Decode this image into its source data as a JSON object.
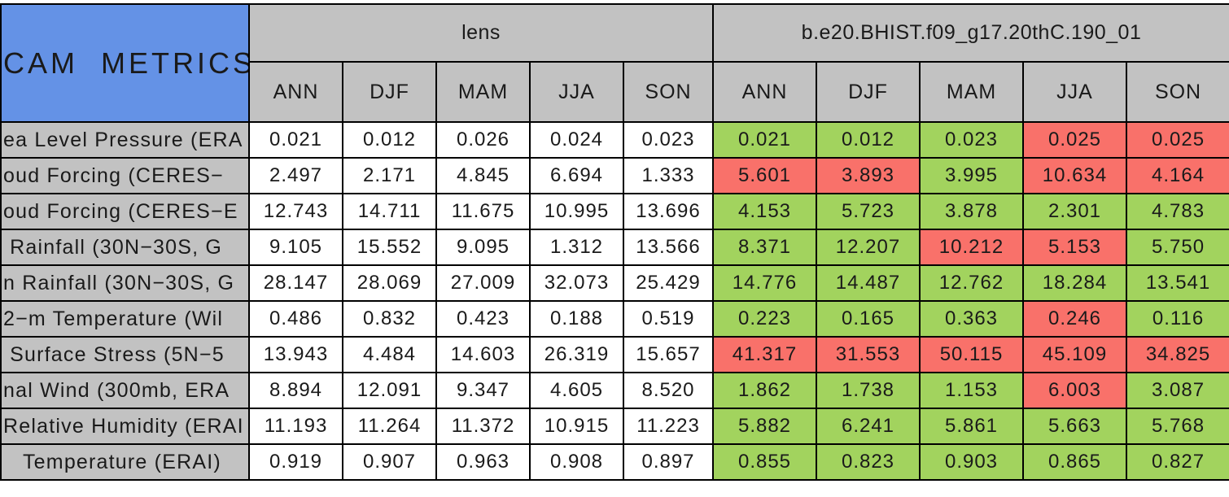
{
  "chart_data": {
    "type": "table",
    "title": "CAM METRICS",
    "column_groups": [
      {
        "label": "lens",
        "columns": [
          "ANN",
          "DJF",
          "MAM",
          "JJA",
          "SON"
        ]
      },
      {
        "label": "b.e20.BHIST.f09_g17.20thC.190_01",
        "columns": [
          "ANN",
          "DJF",
          "MAM",
          "JJA",
          "SON"
        ]
      }
    ],
    "colors": {
      "title_cell_blue": "#6492e6",
      "header_gray": "#c2c2c2",
      "pass_green": "#a2d35e",
      "fail_red": "#f9716a",
      "lens_cell_white": "#ffffff",
      "grid_black": "#000000",
      "text_black": "#1a1a1a"
    },
    "rows": [
      {
        "label": "ea Level Pressure (ERA",
        "lens": [
          "0.021",
          "0.012",
          "0.026",
          "0.024",
          "0.023"
        ],
        "case": [
          "0.021",
          "0.012",
          "0.023",
          "0.025",
          "0.025"
        ],
        "case_flags": [
          "pass",
          "pass",
          "pass",
          "fail",
          "fail"
        ]
      },
      {
        "label": "oud Forcing (CERES−",
        "lens": [
          "2.497",
          "2.171",
          "4.845",
          "6.694",
          "1.333"
        ],
        "case": [
          "5.601",
          "3.893",
          "3.995",
          "10.634",
          "4.164"
        ],
        "case_flags": [
          "fail",
          "fail",
          "pass",
          "fail",
          "fail"
        ]
      },
      {
        "label": "oud Forcing (CERES−E",
        "lens": [
          "12.743",
          "14.711",
          "11.675",
          "10.995",
          "13.696"
        ],
        "case": [
          "4.153",
          "5.723",
          "3.878",
          "2.301",
          "4.783"
        ],
        "case_flags": [
          "pass",
          "pass",
          "pass",
          "pass",
          "pass"
        ]
      },
      {
        "label": " Rainfall (30N−30S, G",
        "lens": [
          "9.105",
          "15.552",
          "9.095",
          "1.312",
          "13.566"
        ],
        "case": [
          "8.371",
          "12.207",
          "10.212",
          "5.153",
          "5.750"
        ],
        "case_flags": [
          "pass",
          "pass",
          "fail",
          "fail",
          "pass"
        ]
      },
      {
        "label": "n Rainfall (30N−30S, G",
        "lens": [
          "28.147",
          "28.069",
          "27.009",
          "32.073",
          "25.429"
        ],
        "case": [
          "14.776",
          "14.487",
          "12.762",
          "18.284",
          "13.541"
        ],
        "case_flags": [
          "pass",
          "pass",
          "pass",
          "pass",
          "pass"
        ]
      },
      {
        "label": "2−m Temperature (Wil",
        "lens": [
          "0.486",
          "0.832",
          "0.423",
          "0.188",
          "0.519"
        ],
        "case": [
          "0.223",
          "0.165",
          "0.363",
          "0.246",
          "0.116"
        ],
        "case_flags": [
          "pass",
          "pass",
          "pass",
          "fail",
          "pass"
        ]
      },
      {
        "label": " Surface Stress (5N−5",
        "lens": [
          "13.943",
          "4.484",
          "14.603",
          "26.319",
          "15.657"
        ],
        "case": [
          "41.317",
          "31.553",
          "50.115",
          "45.109",
          "34.825"
        ],
        "case_flags": [
          "fail",
          "fail",
          "fail",
          "fail",
          "fail"
        ]
      },
      {
        "label": "nal Wind (300mb, ERA",
        "lens": [
          "8.894",
          "12.091",
          "9.347",
          "4.605",
          "8.520"
        ],
        "case": [
          "1.862",
          "1.738",
          "1.153",
          "6.003",
          "3.087"
        ],
        "case_flags": [
          "pass",
          "pass",
          "pass",
          "fail",
          "pass"
        ]
      },
      {
        "label": "Relative Humidity (ERAI",
        "lens": [
          "11.193",
          "11.264",
          "11.372",
          "10.915",
          "11.223"
        ],
        "case": [
          "5.882",
          "6.241",
          "5.861",
          "5.663",
          "5.768"
        ],
        "case_flags": [
          "pass",
          "pass",
          "pass",
          "pass",
          "pass"
        ]
      },
      {
        "label": "   Temperature (ERAI)",
        "lens": [
          "0.919",
          "0.907",
          "0.963",
          "0.908",
          "0.897"
        ],
        "case": [
          "0.855",
          "0.823",
          "0.903",
          "0.865",
          "0.827"
        ],
        "case_flags": [
          "pass",
          "pass",
          "pass",
          "pass",
          "pass"
        ]
      }
    ]
  }
}
